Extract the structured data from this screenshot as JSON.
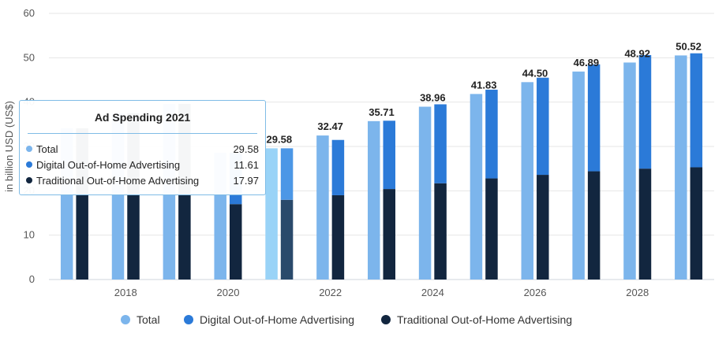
{
  "chart_data": {
    "type": "bar",
    "ylabel": "in billion USD (US$)",
    "ylim": [
      0,
      60
    ],
    "yticks": [
      0,
      10,
      20,
      30,
      40,
      50,
      60
    ],
    "categories": [
      "2017",
      "2018",
      "2019",
      "2020",
      "2021",
      "2022",
      "2023",
      "2024",
      "2025",
      "2026",
      "2027",
      "2028",
      "2029"
    ],
    "x_tick_labels": [
      "2018",
      "2020",
      "2022",
      "2024",
      "2026",
      "2028"
    ],
    "series": [
      {
        "name": "Total",
        "color": "#7cb5ec",
        "values": [
          34.1,
          37.5,
          39.6,
          28.58,
          29.58,
          32.47,
          35.71,
          38.96,
          41.83,
          44.5,
          46.89,
          48.92,
          50.52
        ]
      },
      {
        "name": "Digital Out-of-Home Advertising",
        "color": "#2b7ad8",
        "values": [
          null,
          null,
          null,
          null,
          11.61,
          12.47,
          15.4,
          17.8,
          20.0,
          21.9,
          24.1,
          25.6,
          25.7
        ]
      },
      {
        "name": "Traditional Out-of-Home Advertising",
        "color": "#12263f",
        "values": [
          null,
          null,
          null,
          17.0,
          17.97,
          19.0,
          20.4,
          21.7,
          22.8,
          23.6,
          24.4,
          25.0,
          25.3
        ]
      }
    ],
    "value_labels": [
      "",
      "",
      "",
      "",
      "29.58",
      "32.47",
      "35.71",
      "38.96",
      "41.83",
      "44.50",
      "46.89",
      "48.92",
      "50.52"
    ],
    "highlighted_category": "2021",
    "legend": [
      "Total",
      "Digital Out-of-Home Advertising",
      "Traditional Out-of-Home Advertising"
    ],
    "legend_position": "bottom",
    "grid": true
  },
  "tooltip": {
    "title": "Ad Spending 2021",
    "rows": [
      {
        "label": "Total",
        "value": "29.58",
        "color": "#7cb5ec"
      },
      {
        "label": "Digital Out-of-Home Advertising",
        "value": "11.61",
        "color": "#2b7ad8"
      },
      {
        "label": "Traditional Out-of-Home Advertising",
        "value": "17.97",
        "color": "#12263f"
      }
    ]
  }
}
